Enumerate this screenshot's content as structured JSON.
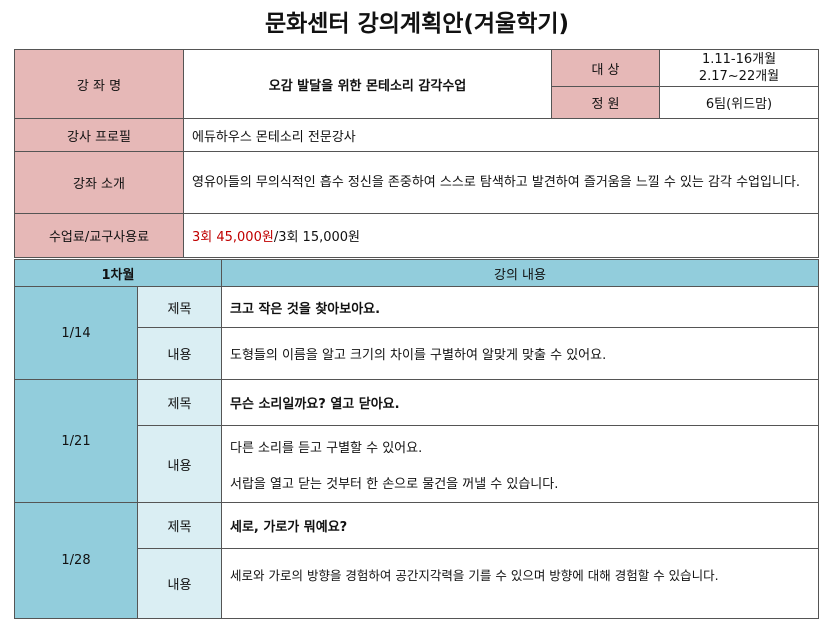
{
  "title": "문화센터 강의계획안(겨울학기)",
  "info": {
    "course_label": "강 좌 명",
    "course_name": "오감 발달을 위한  몬테소리 감각수업",
    "target_label": "대 상",
    "target_1": "1.11-16개월",
    "target_2": "2.17~22개월",
    "capacity_label": "정 원",
    "capacity": "6팀(위드맘)",
    "instructor_label": "강사 프로필",
    "instructor": "에듀하우스 몬테소리 전문강사",
    "intro_label": "강좌 소개",
    "intro": "영유아들의 무의식적인 흡수 정신을 존중하여 스스로 탐색하고  발견하여 즐거움을 느낄 수 있는 감각 수업입니다.",
    "fee_label": "수업료/교구사용료",
    "fee_red": "3회 45,000원",
    "fee_rest": "/3회 15,000원"
  },
  "schedule": {
    "month_header": "1차월",
    "content_header": "강의 내용",
    "title_label": "제목",
    "content_label": "내용",
    "sessions": [
      {
        "date": "1/14",
        "title": "크고 작은 것을 찾아보아요.",
        "content": [
          "도형들의 이름을 알고 크기의 차이를 구별하여 알맞게 맞출 수 있어요."
        ]
      },
      {
        "date": "1/21",
        "title": "무슨 소리일까요?  열고 닫아요.",
        "content": [
          "다른 소리를 듣고 구별할 수 있어요.",
          "서랍을 열고 닫는 것부터 한 손으로 물건을 꺼낼 수 있습니다."
        ]
      },
      {
        "date": "1/28",
        "title": "세로, 가로가 뭐예요?",
        "content": [
          "세로와 가로의 방향을 경험하여 공간지각력을 기를 수 있으며 방향에 대해 경험할 수 있습니다."
        ]
      }
    ]
  }
}
